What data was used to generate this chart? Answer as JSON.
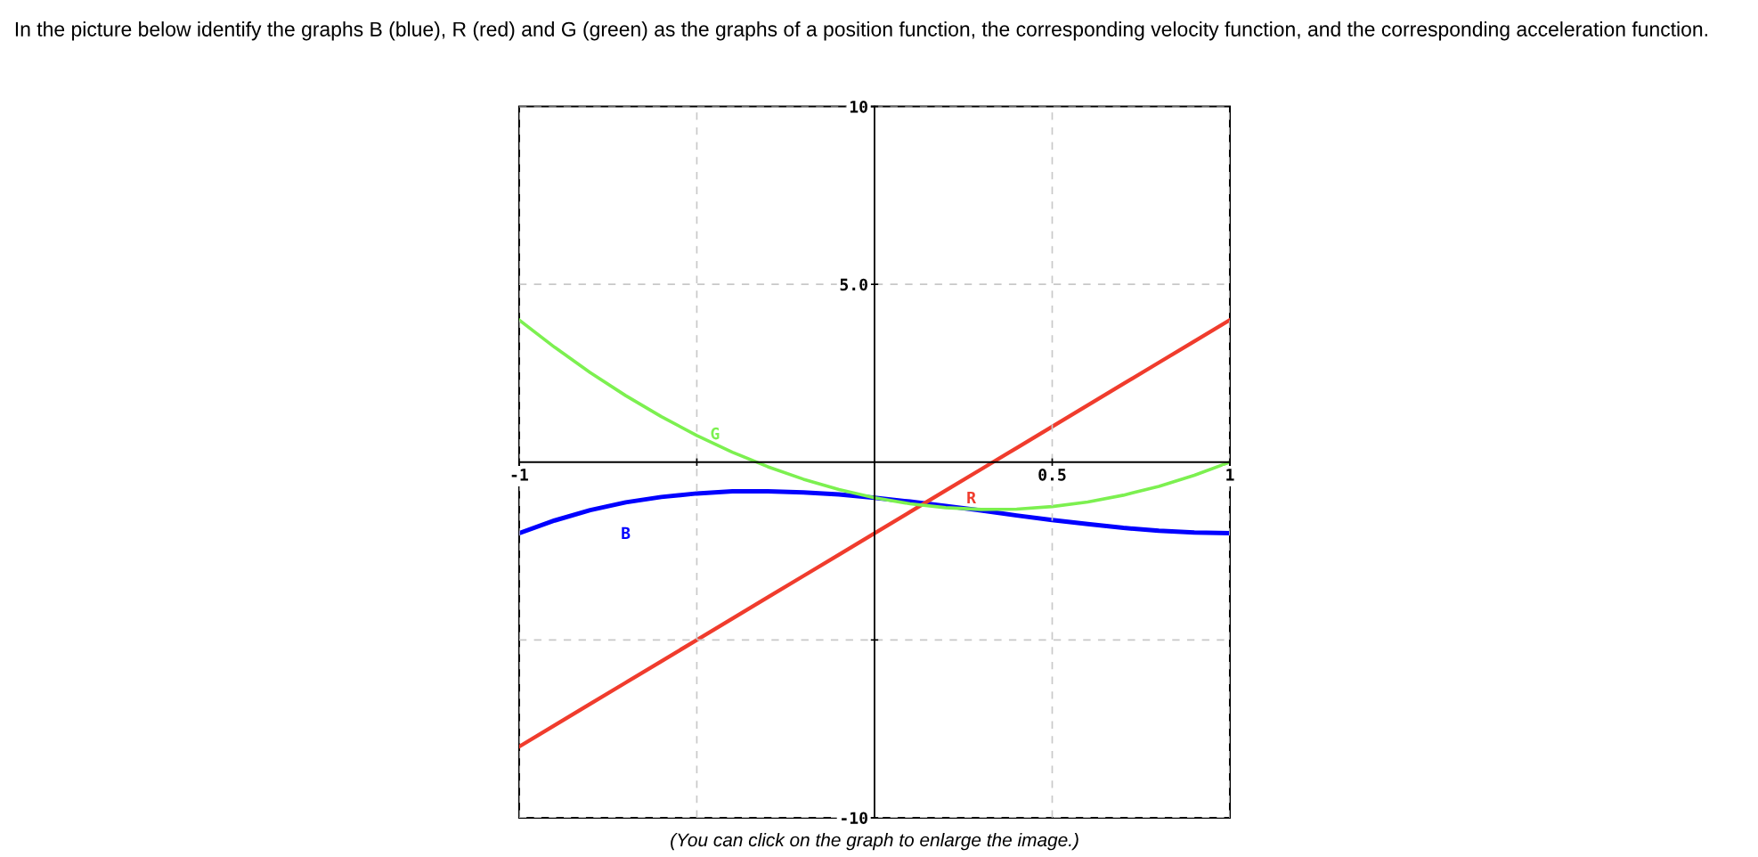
{
  "chart_data": {
    "type": "line",
    "title": "In the picture below identify the graphs B (blue), R (red) and G (green) as the graphs of a position function, the corresponding velocity function, and the corresponding acceleration function.",
    "x": [
      -1,
      -0.9,
      -0.8,
      -0.7,
      -0.6,
      -0.5,
      -0.4,
      -0.3,
      -0.2,
      -0.1,
      0,
      0.1,
      0.2,
      0.3,
      0.4,
      0.5,
      0.6,
      0.7,
      0.8,
      0.9,
      1
    ],
    "series": [
      {
        "name": "B",
        "color": "#0000ff",
        "values": [
          -2,
          -1.64,
          -1.35,
          -1.13,
          -0.98,
          -0.88,
          -0.82,
          -0.82,
          -0.85,
          -0.91,
          -1,
          -1.11,
          -1.23,
          -1.36,
          -1.5,
          -1.63,
          -1.74,
          -1.85,
          -1.93,
          -1.98,
          -2
        ]
      },
      {
        "name": "R",
        "color": "#f03c2d",
        "values": [
          -8,
          -7.4,
          -6.8,
          -6.2,
          -5.6,
          -5,
          -4.4,
          -3.8,
          -3.2,
          -2.6,
          -2,
          -1.4,
          -0.8,
          -0.2,
          0.4,
          1,
          1.6,
          2.2,
          2.8,
          3.4,
          4
        ]
      },
      {
        "name": "G",
        "color": "#7cf050",
        "values": [
          4,
          3.23,
          2.52,
          1.87,
          1.28,
          0.75,
          0.28,
          -0.13,
          -0.48,
          -0.77,
          -1,
          -1.17,
          -1.28,
          -1.33,
          -1.32,
          -1.25,
          -1.12,
          -0.93,
          -0.68,
          -0.37,
          0
        ]
      }
    ],
    "annotations": [
      "(You can click on the graph to enlarge the image.)"
    ],
    "xlim": [
      -1,
      1
    ],
    "ylim": [
      -10,
      10
    ],
    "xticks": [
      -1,
      {
        "value": -0.5,
        "label": null
      },
      0.5,
      1
    ],
    "yticks": [
      -10,
      {
        "value": -5,
        "label": null
      },
      {
        "value": 5,
        "label": "5.0"
      },
      10
    ],
    "grid": true,
    "legend": false,
    "marker": "none",
    "line_style": "solid"
  }
}
